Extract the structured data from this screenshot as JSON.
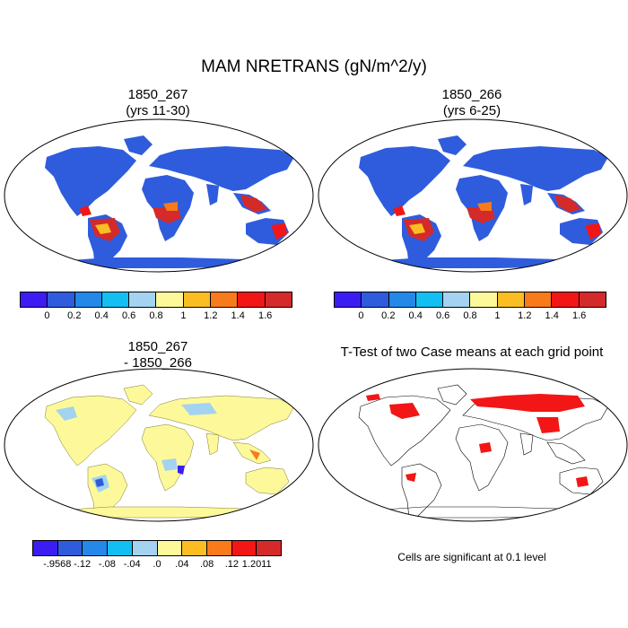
{
  "figure": {
    "title": "MAM NRETRANS (gN/m^2/y)"
  },
  "panels": {
    "top_left": {
      "line1": "1850_267",
      "line2": "(yrs 11-30)"
    },
    "top_right": {
      "line1": "1850_266",
      "line2": "(yrs 6-25)"
    },
    "bottom_left": {
      "line1": "1850_267",
      "line2": "- 1850_266"
    },
    "bottom_right": {
      "line1": "T-Test of two Case means at each grid point"
    }
  },
  "colorbar_main": {
    "colors": [
      "#3b1cf2",
      "#2f5cdc",
      "#2488e8",
      "#13bff2",
      "#a3d3f0",
      "#fdf99a",
      "#fbbe22",
      "#f97a1a",
      "#f21616",
      "#d42a2a"
    ],
    "labels": [
      "0",
      "0.2",
      "0.4",
      "0.6",
      "0.8",
      "1",
      "1.2",
      "1.4",
      "1.6"
    ]
  },
  "colorbar_diff": {
    "colors": [
      "#3b1cf2",
      "#2f5cdc",
      "#2488e8",
      "#13bff2",
      "#a3d3f0",
      "#fdf99a",
      "#fbbe22",
      "#f97a1a",
      "#f21616",
      "#d42a2a"
    ],
    "labels": [
      "-.9568",
      "-.12",
      "-.08",
      "-.04",
      ".0",
      ".04",
      ".08",
      ".12",
      "1.2011"
    ]
  },
  "ttest": {
    "footnote": "Cells are significant at 0.1 level",
    "significant_color": "#f21616"
  }
}
